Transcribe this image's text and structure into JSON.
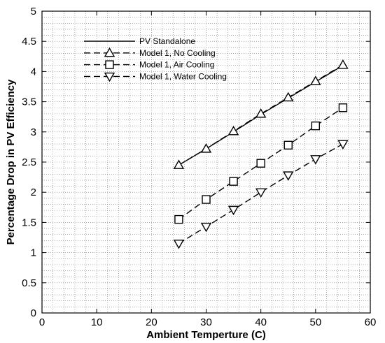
{
  "chart_data": {
    "type": "line",
    "title": "",
    "xlabel": "Ambient Temperture (C)",
    "ylabel": "Percentage Drop in PV Efficiency",
    "xlim": [
      0,
      60
    ],
    "ylim": [
      0,
      5
    ],
    "xticks": [
      0,
      10,
      20,
      30,
      40,
      50,
      60
    ],
    "yticks": [
      0,
      0.5,
      1,
      1.5,
      2,
      2.5,
      3,
      3.5,
      4,
      4.5,
      5
    ],
    "xtick_labels": [
      "0",
      "10",
      "20",
      "30",
      "40",
      "50",
      "60"
    ],
    "ytick_labels": [
      "0",
      "0.5",
      "1",
      "1.5",
      "2",
      "2.5",
      "3",
      "3.5",
      "4",
      "4.5",
      "5"
    ],
    "grid": true,
    "grid_minor_x": 2,
    "grid_minor_y": 0.1,
    "legend_position": "top-left",
    "series": [
      {
        "name": "PV Standalone",
        "line_style": "solid",
        "marker": "none",
        "color": "#000000",
        "x": [
          25,
          30,
          35,
          40,
          45,
          50,
          55
        ],
        "y": [
          2.45,
          2.72,
          3.0,
          3.29,
          3.56,
          3.83,
          4.1
        ]
      },
      {
        "name": "Model 1, No Cooling",
        "line_style": "dashed",
        "marker": "triangle-up",
        "color": "#000000",
        "x": [
          25,
          30,
          35,
          40,
          45,
          50,
          55
        ],
        "y": [
          2.45,
          2.72,
          3.01,
          3.3,
          3.57,
          3.84,
          4.11
        ]
      },
      {
        "name": "Model 1, Air Cooling",
        "line_style": "dashed",
        "marker": "square",
        "color": "#000000",
        "x": [
          25,
          30,
          35,
          40,
          45,
          50,
          55
        ],
        "y": [
          1.55,
          1.88,
          2.18,
          2.48,
          2.78,
          3.1,
          3.4
        ]
      },
      {
        "name": "Model 1, Water Cooling",
        "line_style": "dashed",
        "marker": "triangle-down",
        "color": "#000000",
        "x": [
          25,
          30,
          35,
          40,
          45,
          50,
          55
        ],
        "y": [
          1.15,
          1.43,
          1.71,
          2.0,
          2.28,
          2.55,
          2.8
        ]
      }
    ]
  }
}
